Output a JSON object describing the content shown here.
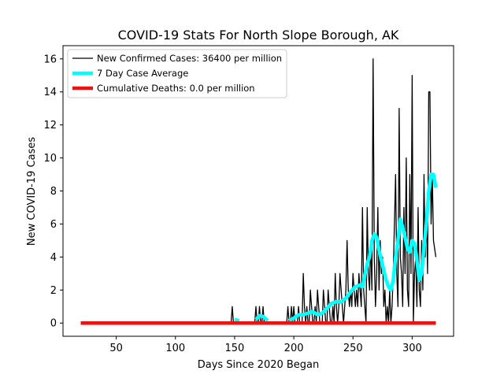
{
  "chart_data": {
    "type": "line",
    "title": "COVID-19 Stats For North Slope Borough, AK",
    "xlabel": "Days Since 2020 Began",
    "ylabel": "New COVID-19 Cases",
    "xlim": [
      5,
      335
    ],
    "ylim": [
      -0.8,
      16.8
    ],
    "x_ticks": [
      50,
      100,
      150,
      200,
      250,
      300
    ],
    "y_ticks": [
      0,
      2,
      4,
      6,
      8,
      10,
      12,
      14,
      16
    ],
    "grid": false,
    "legend_position": "top-left",
    "series": [
      {
        "name": "New Confirmed Cases: 36400 per million",
        "color": "#000000",
        "style": "thin-line",
        "points": [
          [
            20,
            0
          ],
          [
            145,
            0
          ],
          [
            147,
            0
          ],
          [
            148,
            1
          ],
          [
            149,
            0
          ],
          [
            150,
            0
          ],
          [
            165,
            0
          ],
          [
            167,
            0
          ],
          [
            168,
            1
          ],
          [
            169,
            0
          ],
          [
            170,
            0
          ],
          [
            171,
            1
          ],
          [
            172,
            0
          ],
          [
            173,
            0
          ],
          [
            174,
            1
          ],
          [
            175,
            0
          ],
          [
            176,
            0
          ],
          [
            177,
            0
          ],
          [
            178,
            0
          ],
          [
            193,
            0
          ],
          [
            194,
            0
          ],
          [
            195,
            1
          ],
          [
            196,
            0
          ],
          [
            197,
            0
          ],
          [
            198,
            1
          ],
          [
            199,
            0
          ],
          [
            200,
            1
          ],
          [
            201,
            0
          ],
          [
            202,
            0
          ],
          [
            203,
            0
          ],
          [
            204,
            1
          ],
          [
            205,
            0
          ],
          [
            206,
            0
          ],
          [
            207,
            0
          ],
          [
            208,
            3
          ],
          [
            209,
            1
          ],
          [
            210,
            0
          ],
          [
            211,
            1
          ],
          [
            212,
            0
          ],
          [
            213,
            0
          ],
          [
            214,
            2
          ],
          [
            215,
            1
          ],
          [
            216,
            0
          ],
          [
            217,
            0
          ],
          [
            218,
            1
          ],
          [
            219,
            0
          ],
          [
            220,
            2
          ],
          [
            221,
            1
          ],
          [
            222,
            0
          ],
          [
            223,
            0
          ],
          [
            224,
            0
          ],
          [
            225,
            2
          ],
          [
            226,
            1
          ],
          [
            227,
            0
          ],
          [
            228,
            0
          ],
          [
            229,
            2
          ],
          [
            230,
            1
          ],
          [
            231,
            0
          ],
          [
            232,
            0
          ],
          [
            233,
            1
          ],
          [
            234,
            0
          ],
          [
            235,
            3
          ],
          [
            236,
            1
          ],
          [
            237,
            0
          ],
          [
            238,
            1
          ],
          [
            239,
            3
          ],
          [
            240,
            2
          ],
          [
            241,
            1
          ],
          [
            242,
            0
          ],
          [
            243,
            1
          ],
          [
            244,
            2
          ],
          [
            245,
            5
          ],
          [
            246,
            2
          ],
          [
            247,
            1
          ],
          [
            248,
            2
          ],
          [
            249,
            1
          ],
          [
            250,
            3
          ],
          [
            251,
            2
          ],
          [
            252,
            1
          ],
          [
            253,
            2
          ],
          [
            254,
            1
          ],
          [
            255,
            3
          ],
          [
            256,
            2
          ],
          [
            257,
            1
          ],
          [
            258,
            7
          ],
          [
            259,
            2
          ],
          [
            260,
            1
          ],
          [
            261,
            0
          ],
          [
            262,
            7
          ],
          [
            263,
            3
          ],
          [
            264,
            2
          ],
          [
            265,
            5
          ],
          [
            266,
            2
          ],
          [
            267,
            16
          ],
          [
            268,
            4
          ],
          [
            269,
            1
          ],
          [
            270,
            3
          ],
          [
            271,
            7
          ],
          [
            272,
            2
          ],
          [
            273,
            5
          ],
          [
            274,
            3
          ],
          [
            275,
            4
          ],
          [
            276,
            1
          ],
          [
            277,
            2
          ],
          [
            278,
            0
          ],
          [
            279,
            1
          ],
          [
            280,
            0
          ],
          [
            281,
            2
          ],
          [
            282,
            0
          ],
          [
            283,
            1
          ],
          [
            284,
            3
          ],
          [
            285,
            6
          ],
          [
            286,
            9
          ],
          [
            287,
            3
          ],
          [
            288,
            1
          ],
          [
            289,
            13
          ],
          [
            290,
            4
          ],
          [
            291,
            3
          ],
          [
            292,
            1
          ],
          [
            293,
            7
          ],
          [
            294,
            3
          ],
          [
            295,
            10
          ],
          [
            296,
            2
          ],
          [
            297,
            1
          ],
          [
            298,
            9
          ],
          [
            299,
            3
          ],
          [
            300,
            15
          ],
          [
            301,
            0
          ],
          [
            302,
            3
          ],
          [
            303,
            4
          ],
          [
            304,
            1
          ],
          [
            305,
            7
          ],
          [
            306,
            2
          ],
          [
            307,
            1
          ],
          [
            308,
            5
          ],
          [
            309,
            2
          ],
          [
            310,
            9
          ],
          [
            311,
            4
          ],
          [
            312,
            7
          ],
          [
            313,
            3
          ],
          [
            314,
            14
          ],
          [
            315,
            14
          ],
          [
            316,
            6
          ],
          [
            317,
            9
          ],
          [
            318,
            5
          ],
          [
            320,
            4
          ]
        ]
      },
      {
        "name": "7 Day Case Average",
        "color": "#00ffff",
        "style": "thick-line",
        "segments": [
          [
            [
              150,
              0.2
            ],
            [
              154,
              0.15
            ]
          ],
          [
            [
              168,
              0.2
            ],
            [
              171,
              0.45
            ],
            [
              174,
              0.4
            ],
            [
              178,
              0.15
            ]
          ],
          [
            [
              196,
              0.15
            ],
            [
              200,
              0.3
            ],
            [
              204,
              0.5
            ],
            [
              208,
              0.5
            ],
            [
              212,
              0.6
            ],
            [
              216,
              0.7
            ],
            [
              220,
              0.5
            ],
            [
              224,
              0.6
            ],
            [
              228,
              0.9
            ],
            [
              232,
              1.2
            ],
            [
              236,
              1.3
            ],
            [
              240,
              1.3
            ],
            [
              244,
              1.5
            ],
            [
              248,
              1.9
            ],
            [
              252,
              2.2
            ],
            [
              256,
              2.3
            ],
            [
              258,
              2.2
            ],
            [
              260,
              2.9
            ],
            [
              262,
              3.6
            ],
            [
              264,
              4.0
            ],
            [
              266,
              5.0
            ],
            [
              268,
              5.4
            ],
            [
              270,
              5.2
            ],
            [
              272,
              4.4
            ],
            [
              274,
              3.8
            ],
            [
              276,
              3.2
            ],
            [
              278,
              2.6
            ],
            [
              280,
              2.2
            ],
            [
              282,
              2.0
            ],
            [
              284,
              2.6
            ],
            [
              286,
              4.0
            ],
            [
              288,
              5.0
            ],
            [
              290,
              6.3
            ],
            [
              292,
              5.8
            ],
            [
              294,
              5.2
            ],
            [
              296,
              4.5
            ],
            [
              298,
              4.3
            ],
            [
              300,
              5.0
            ],
            [
              302,
              4.8
            ],
            [
              304,
              3.8
            ],
            [
              306,
              2.6
            ],
            [
              308,
              3.0
            ],
            [
              310,
              4.6
            ],
            [
              312,
              6.0
            ],
            [
              314,
              8.0
            ],
            [
              316,
              9.0
            ],
            [
              318,
              9.0
            ],
            [
              320,
              8.2
            ]
          ]
        ]
      },
      {
        "name": "Cumulative Deaths: 0.0 per million",
        "color": "#ee1111",
        "style": "thick-line",
        "segments": [
          [
            [
              20,
              0
            ],
            [
              320,
              0
            ]
          ]
        ]
      }
    ]
  }
}
